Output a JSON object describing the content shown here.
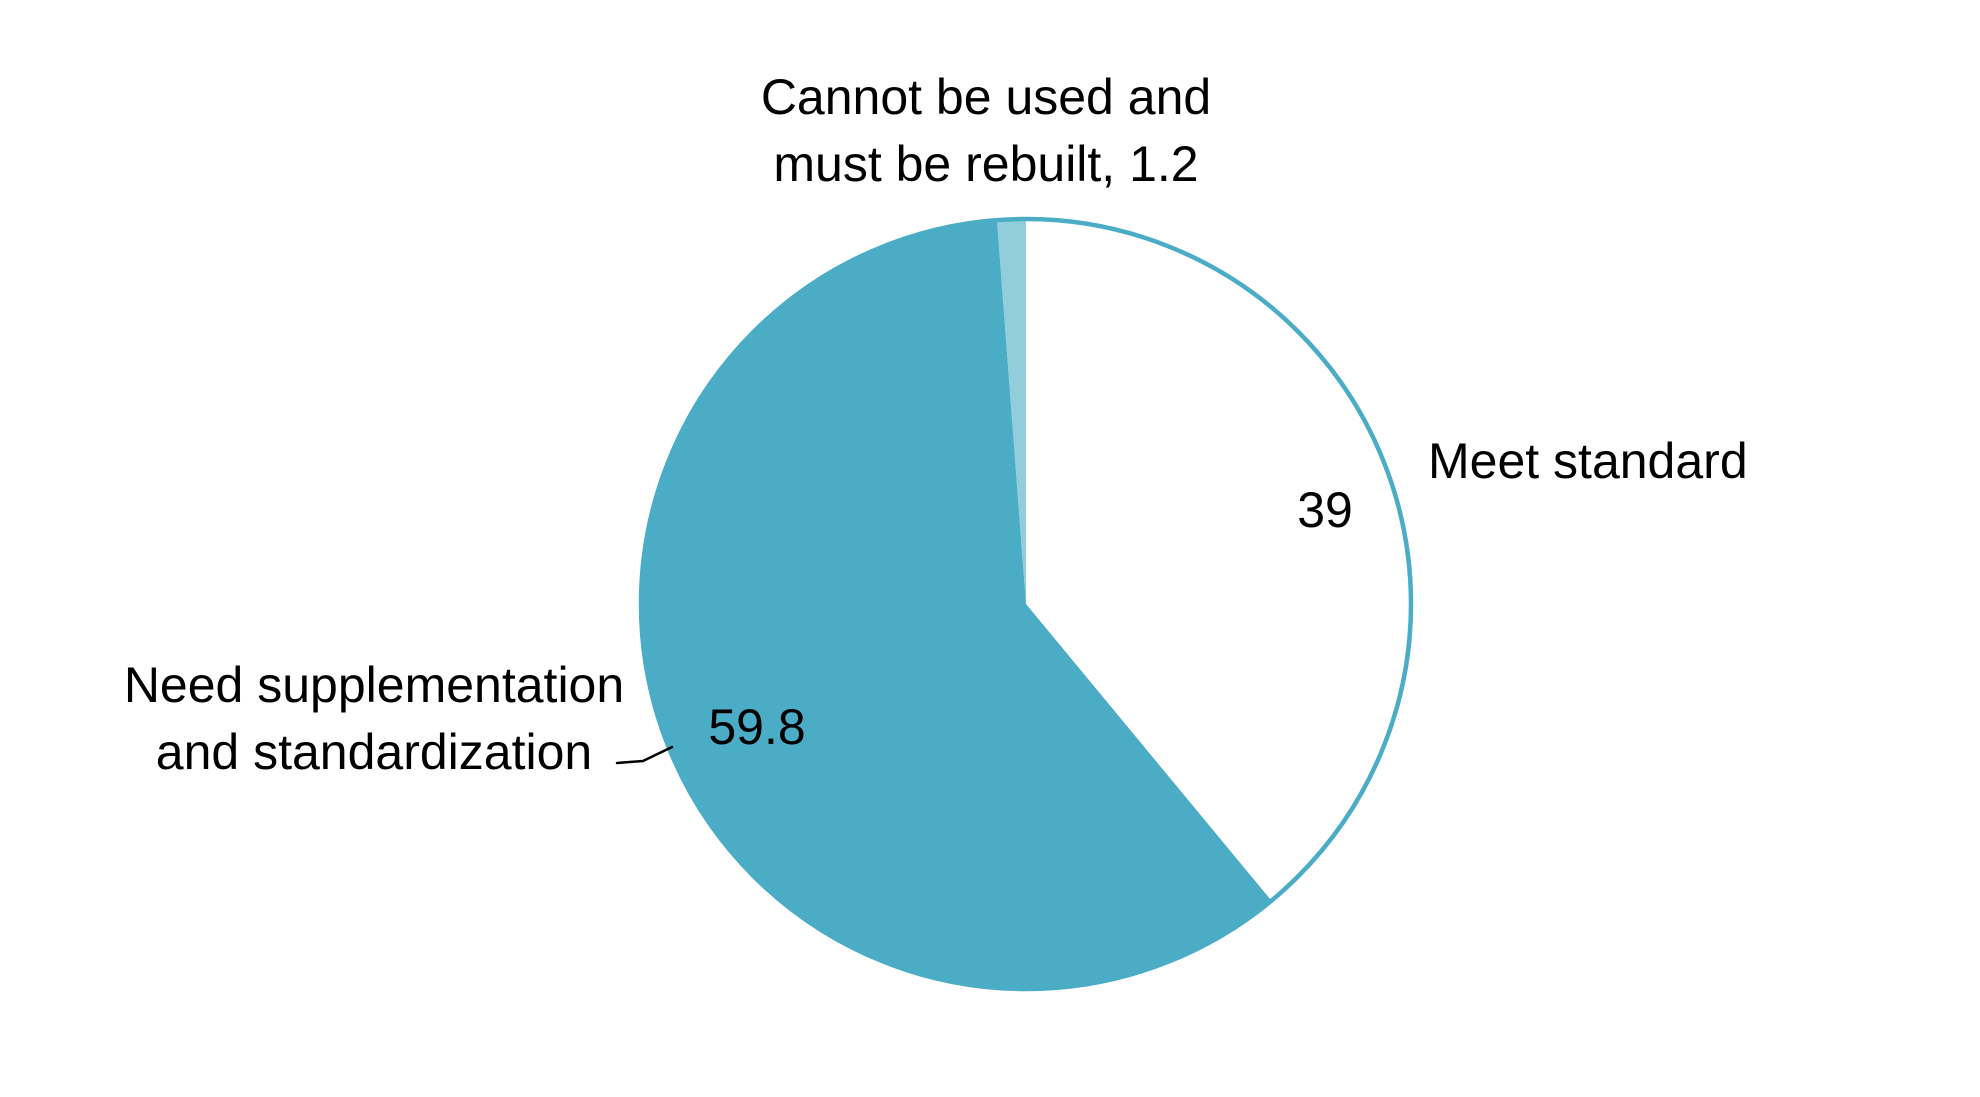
{
  "chart_data": {
    "type": "pie",
    "title": "",
    "total": 100,
    "start_angle_deg": 0,
    "direction": "clockwise",
    "outline_color": "#4BACC6",
    "slices": [
      {
        "label": "Meet standard",
        "value": 39,
        "color": "#FFFFFF",
        "label_display": "39"
      },
      {
        "label": "Need supplementation and standardization",
        "value": 59.8,
        "color": "#4AACC5",
        "label_display": "59.8"
      },
      {
        "label": "Cannot be used and must be rebuilt",
        "value": 1.2,
        "color": "#92CDDC",
        "label_display": "1.2"
      }
    ],
    "legend": "none",
    "colors": {
      "accent_teal": "#4AACC5",
      "light_teal": "#92CDDC",
      "label_text": "#000000"
    }
  },
  "annotations": {
    "top_line1": "Cannot be used and",
    "top_line2": "must be rebuilt, 1.2",
    "right_label": "Meet standard",
    "right_value": "39",
    "inner_value": "59.8",
    "left_line1": "Need supplementation",
    "left_line2": "and standardization"
  }
}
